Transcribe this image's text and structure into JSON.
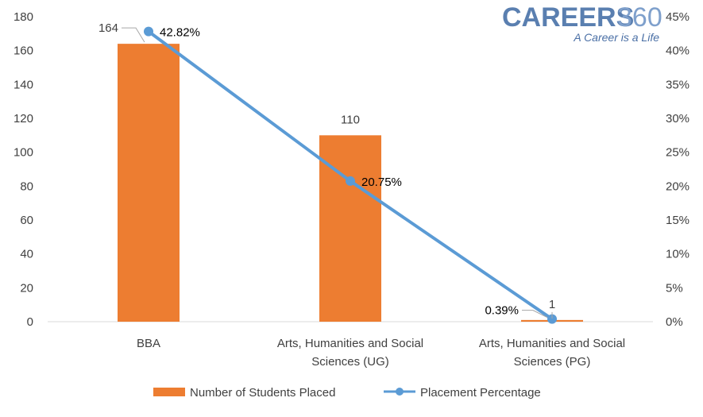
{
  "logo": {
    "brand": "CAREERS",
    "number": "360",
    "tagline": "A Career is a Life"
  },
  "chart_data": {
    "type": "bar",
    "categories": [
      [
        "BBA"
      ],
      [
        "Arts, Humanities and Social",
        "Sciences (UG)"
      ],
      [
        "Arts, Humanities and Social",
        "Sciences (PG)"
      ]
    ],
    "series": [
      {
        "name": "Number of Students Placed",
        "type": "bar",
        "axis": "left",
        "color": "#ed7d31",
        "values": [
          164,
          110,
          1
        ],
        "labels": [
          "164",
          "110",
          "1"
        ]
      },
      {
        "name": "Placement Percentage",
        "type": "line",
        "axis": "right",
        "color": "#5b9bd5",
        "values": [
          42.82,
          20.75,
          0.39
        ],
        "labels": [
          "42.82%",
          "20.75%",
          "0.39%"
        ]
      }
    ],
    "left_axis": {
      "ylim": [
        0,
        180
      ],
      "ticks": [
        0,
        20,
        40,
        60,
        80,
        100,
        120,
        140,
        160,
        180
      ]
    },
    "right_axis": {
      "ylim": [
        0,
        45
      ],
      "ticks": [
        "0%",
        "5%",
        "10%",
        "15%",
        "20%",
        "25%",
        "30%",
        "35%",
        "40%",
        "45%"
      ]
    },
    "grid": false,
    "legend_position": "bottom"
  }
}
